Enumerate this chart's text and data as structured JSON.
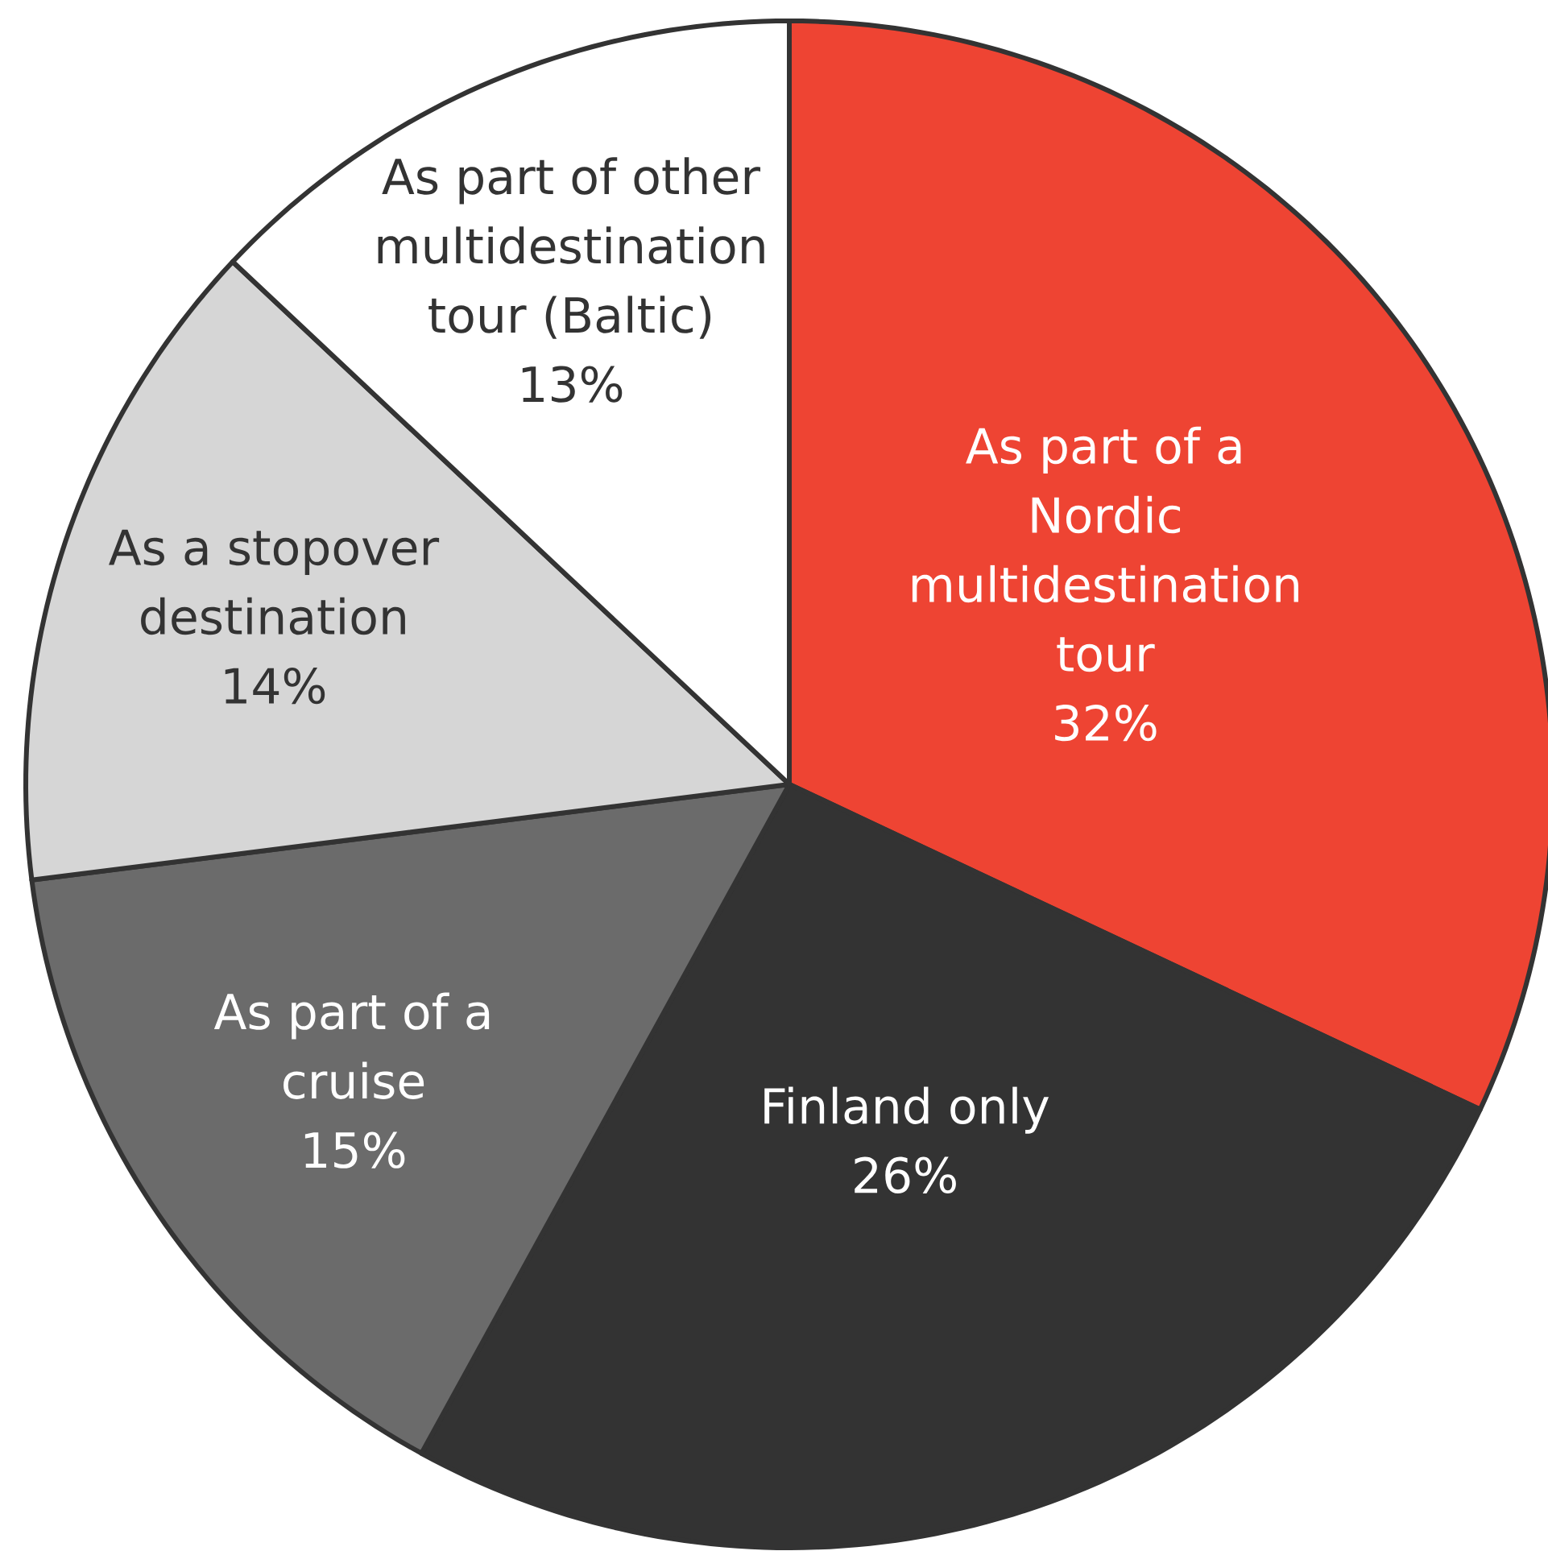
{
  "chart_data": {
    "type": "pie",
    "categories": [
      "As part of a Nordic multidestination tour",
      "Finland only",
      "As part of a cruise",
      "As a stopover destination",
      "As part of other multidestination tour (Baltic)"
    ],
    "values": [
      32,
      26,
      15,
      14,
      13
    ],
    "colors": [
      "#ee4433",
      "#333333",
      "#6b6b6b",
      "#d6d6d6",
      "#ffffff"
    ],
    "value_labels": [
      "32%",
      "26%",
      "15%",
      "14%",
      "13%"
    ]
  }
}
